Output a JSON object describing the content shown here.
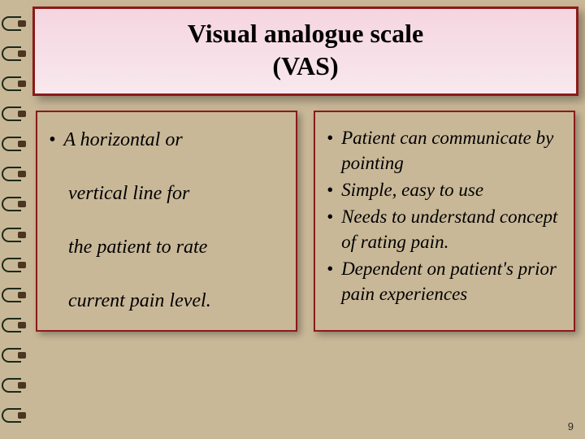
{
  "title": {
    "line1": "Visual analogue scale",
    "line2": "(VAS)"
  },
  "left": {
    "line1": "A horizontal or",
    "line2": "vertical line  for",
    "line3": "the patient to rate",
    "line4": "current pain level."
  },
  "right": {
    "items": [
      " Patient can communicate by pointing",
      "Simple, easy to use",
      "Needs to understand concept of rating pain.",
      " Dependent on patient's prior pain experiences"
    ]
  },
  "pageNumber": "9",
  "colors": {
    "background": "#c9b898",
    "border": "#8b1a1a",
    "titleFill": "#f5d5e0"
  }
}
